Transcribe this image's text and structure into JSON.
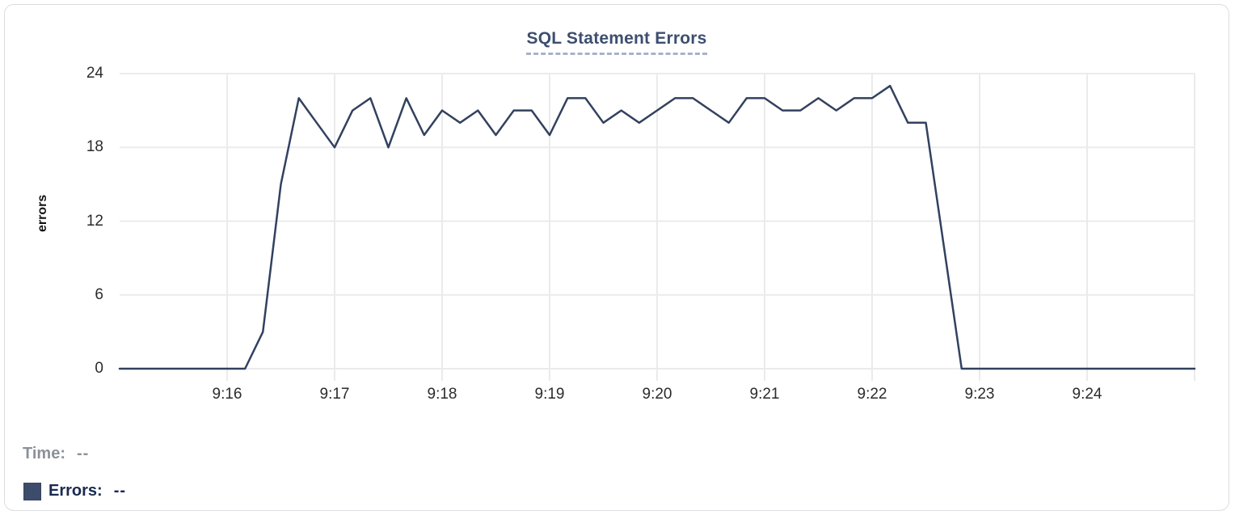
{
  "chart_data": {
    "type": "line",
    "title": "SQL Statement Errors",
    "ylabel": "errors",
    "x_tick_labels": [
      "9:16",
      "9:17",
      "9:18",
      "9:19",
      "9:20",
      "9:21",
      "9:22",
      "9:23",
      "9:24"
    ],
    "y_ticks": [
      0,
      6,
      12,
      18,
      24
    ],
    "ylim": [
      0,
      24
    ],
    "x_range": {
      "start": "9:15:00",
      "end": "9:25:00",
      "sample_interval_seconds": 10
    },
    "grid": true,
    "legend_position": "bottom-left",
    "series": [
      {
        "name": "Errors",
        "color": "#32415f",
        "values": [
          0,
          0,
          0,
          0,
          0,
          0,
          0,
          0,
          3,
          15,
          22,
          20,
          18,
          21,
          22,
          18,
          22,
          19,
          21,
          20,
          21,
          19,
          21,
          21,
          19,
          22,
          22,
          20,
          21,
          20,
          21,
          22,
          22,
          21,
          20,
          22,
          22,
          21,
          21,
          22,
          21,
          22,
          22,
          23,
          20,
          20,
          10,
          0,
          0,
          0,
          0,
          0,
          0,
          0,
          0,
          0,
          0,
          0,
          0,
          0,
          0
        ]
      }
    ]
  },
  "readouts": {
    "time_label": "Time:",
    "time_value": "--",
    "errors_label": "Errors:",
    "errors_value": "--",
    "errors_swatch_color": "#3e4c6b"
  },
  "colors": {
    "title_text": "#3d4e6f",
    "title_underline": "#a7b2cb",
    "axis_text": "#2b2b2b",
    "time_text": "#8c9199",
    "errors_text": "#1a2a4f",
    "grid": "#ebebed",
    "card_border": "#dcdde1",
    "line": "#32415f"
  }
}
